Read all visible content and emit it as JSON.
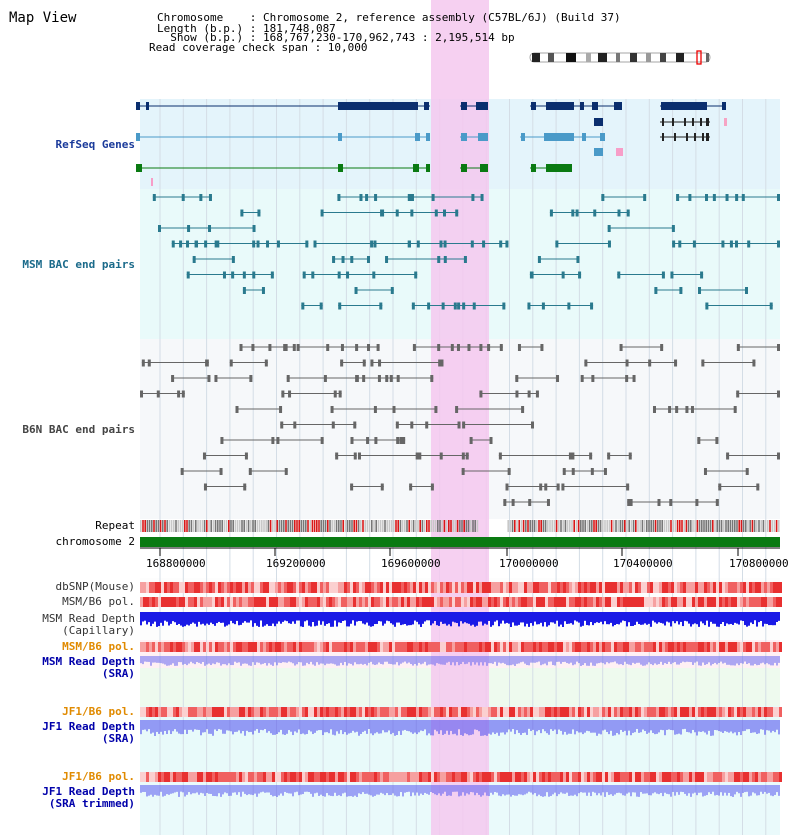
{
  "header": {
    "title": "Map View",
    "chromosome_line": "Chromosome    : Chromosome 2, reference assembly (C57BL/6J) (Build 37)",
    "length_line": "Length (b.p.) : 181,748,087",
    "show_line": "  Show (b.p.) : 168,767,230-170,962,743 : 2,195,514 bp",
    "coverage_line": "Read coverage check span : 10,000"
  },
  "tracks": {
    "refseq": "RefSeq Genes",
    "msm_bac": "MSM BAC end pairs",
    "b6n_bac": "B6N BAC end pairs",
    "repeat": "Repeat",
    "chromosome": "chromosome 2",
    "dbsnp": "dbSNP(Mouse)",
    "msm_b6_pol": "MSM/B6 pol.",
    "msm_depth_cap_1": "MSM Read Depth",
    "msm_depth_cap_2": "(Capillary)",
    "msm_b6_pol_sra": "MSM/B6 pol.",
    "msm_depth_sra_1": "MSM Read Depth",
    "msm_depth_sra_2": "(SRA)",
    "jf1_b6_pol": "JF1/B6 pol.",
    "jf1_depth_sra_1": "JF1 Read Depth",
    "jf1_depth_sra_2": "(SRA)",
    "jf1_b6_pol_trim": "JF1/B6 pol.",
    "jf1_depth_trim_1": "JF1 Read Depth",
    "jf1_depth_trim_2": "(SRA trimmed)"
  },
  "axis": {
    "ticks": [
      "168800000",
      "169200000",
      "169600000",
      "170000000",
      "170400000",
      "170800000"
    ]
  },
  "colors": {
    "refseq_dark": "#0a2e6e",
    "refseq_light": "#4a9ac8",
    "refseq_green": "#0a7a12",
    "msm_bac": "#2a7a8e",
    "b6n_bac": "#666666",
    "highlight": "#f5c8ee",
    "chromosome_bar": "#0a7a12",
    "pol_orange": "#e08a00",
    "depth_blue": "#0000aa"
  }
}
